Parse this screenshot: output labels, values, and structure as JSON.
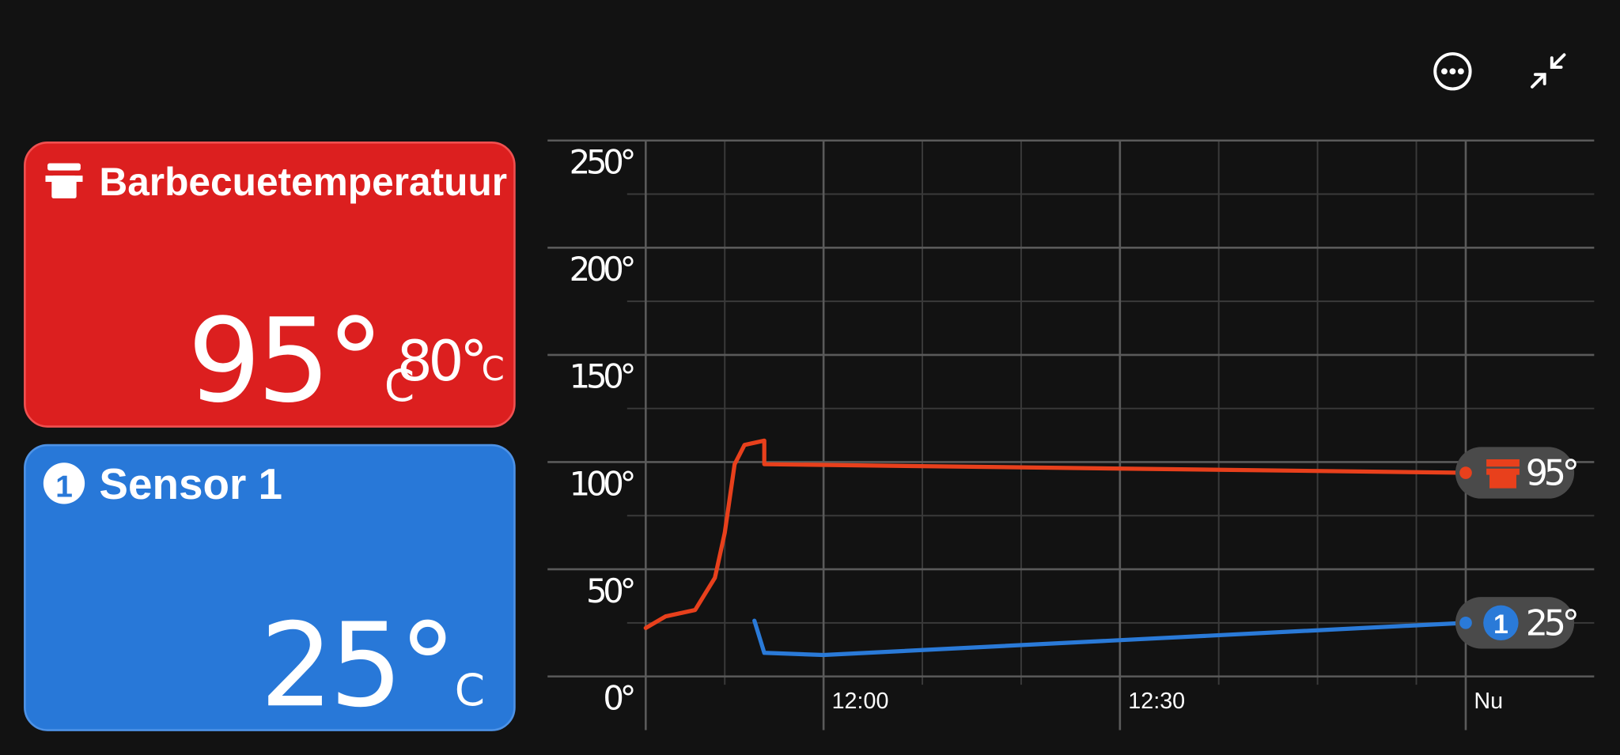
{
  "cards": [
    {
      "title": "Barbecuetemperatuur",
      "temperature": "95°",
      "unit": "C",
      "target": "80°",
      "target_unit": "C"
    },
    {
      "badge": "1",
      "title": "Sensor 1",
      "temperature": "25°",
      "unit": "C"
    }
  ],
  "chart_data": {
    "type": "line",
    "xlim": [
      "11:42",
      "13:18"
    ],
    "xticks": [
      "12:00",
      "12:30",
      {
        "value": "13:05",
        "label": "Nu"
      }
    ],
    "xminor": [
      "11:50",
      "12:10",
      "12:20",
      "12:40",
      "12:50",
      "13:00"
    ],
    "ylim": [
      0,
      250
    ],
    "yticks": [
      {
        "value": 0,
        "label": "0°"
      },
      {
        "value": 50,
        "label": "50°"
      },
      {
        "value": 100,
        "label": "100°"
      },
      {
        "value": 150,
        "label": "150°"
      },
      {
        "value": 200,
        "label": "200°"
      },
      {
        "value": 250,
        "label": "250°"
      }
    ],
    "yminor": [
      25,
      75,
      125,
      175,
      225
    ],
    "grid": true,
    "series": [
      {
        "name": "Barbecuetemperatuur",
        "color": "#e8401c",
        "x": [
          "11:42",
          "11:44",
          "11:47",
          "11:49",
          "11:50",
          "11:51",
          "11:52",
          "11:54",
          "11:54",
          "13:05"
        ],
        "values": [
          22.6,
          28,
          31,
          46,
          67,
          99,
          108,
          110,
          99,
          95
        ],
        "value_labels": [
          null,
          null,
          null,
          null,
          null,
          null,
          null,
          null,
          null,
          "95°"
        ]
      },
      {
        "name": "Sensor 1",
        "color": "#2a7ad8",
        "x": [
          "11:53",
          "11:54",
          "12:00",
          "13:05"
        ],
        "values": [
          26,
          11,
          10,
          25
        ],
        "value_labels": [
          null,
          null,
          null,
          "25°"
        ]
      }
    ]
  }
}
